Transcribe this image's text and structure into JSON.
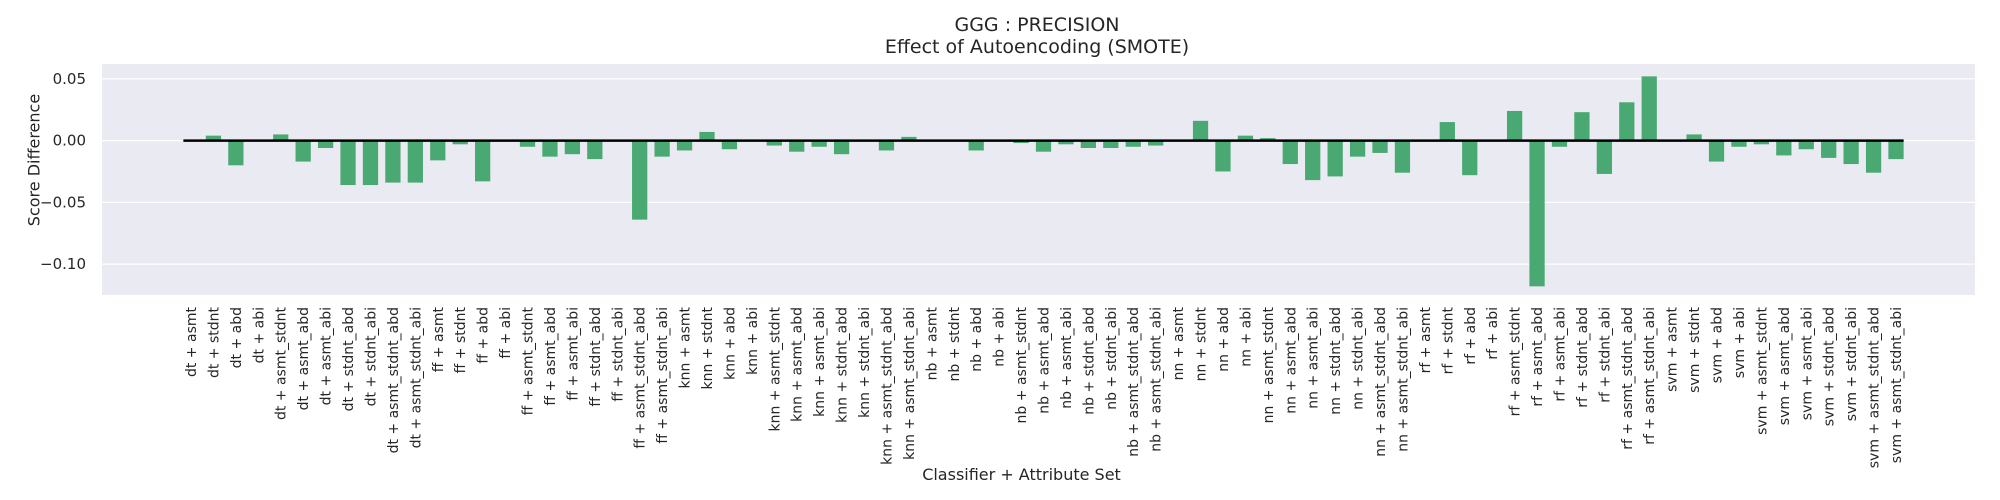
{
  "chart_data": {
    "type": "bar",
    "title": "GGG : PRECISION",
    "subtitle": "Effect of Autoencoding (SMOTE)",
    "xlabel": "Classifier + Attribute Set",
    "ylabel": "Score Difference",
    "ylim": [
      -0.125,
      0.062
    ],
    "yticks": [
      "0.05",
      "0.00",
      "−0.05",
      "−0.10"
    ],
    "ytick_values": [
      0.05,
      0.0,
      -0.05,
      -0.1
    ],
    "grid": true,
    "bar_color": "#4aa872",
    "background_color": "#eaeaf2",
    "categories": [
      "dt + asmt",
      "dt + stdnt",
      "dt + abd",
      "dt + abi",
      "dt + asmt_stdnt",
      "dt + asmt_abd",
      "dt + asmt_abi",
      "dt + stdnt_abd",
      "dt + stdnt_abi",
      "dt + asmt_stdnt_abd",
      "dt + asmt_stdnt_abi",
      "ff + asmt",
      "ff + stdnt",
      "ff + abd",
      "ff + abi",
      "ff + asmt_stdnt",
      "ff + asmt_abd",
      "ff + asmt_abi",
      "ff + stdnt_abd",
      "ff + stdnt_abi",
      "ff + asmt_stdnt_abd",
      "ff + asmt_stdnt_abi",
      "knn + asmt",
      "knn + stdnt",
      "knn + abd",
      "knn + abi",
      "knn + asmt_stdnt",
      "knn + asmt_abd",
      "knn + asmt_abi",
      "knn + stdnt_abd",
      "knn + stdnt_abi",
      "knn + asmt_stdnt_abd",
      "knn + asmt_stdnt_abi",
      "nb + asmt",
      "nb + stdnt",
      "nb + abd",
      "nb + abi",
      "nb + asmt_stdnt",
      "nb + asmt_abd",
      "nb + asmt_abi",
      "nb + stdnt_abd",
      "nb + stdnt_abi",
      "nb + asmt_stdnt_abd",
      "nb + asmt_stdnt_abi",
      "nn + asmt",
      "nn + stdnt",
      "nn + abd",
      "nn + abi",
      "nn + asmt_stdnt",
      "nn + asmt_abd",
      "nn + asmt_abi",
      "nn + stdnt_abd",
      "nn + stdnt_abi",
      "nn + asmt_stdnt_abd",
      "nn + asmt_stdnt_abi",
      "rf + asmt",
      "rf + stdnt",
      "rf + abd",
      "rf + abi",
      "rf + asmt_stdnt",
      "rf + asmt_abd",
      "rf + asmt_abi",
      "rf + stdnt_abd",
      "rf + stdnt_abi",
      "rf + asmt_stdnt_abd",
      "rf + asmt_stdnt_abi",
      "svm + asmt",
      "svm + stdnt",
      "svm + abd",
      "svm + abi",
      "svm + asmt_stdnt",
      "svm + asmt_abd",
      "svm + asmt_abi",
      "svm + stdnt_abd",
      "svm + stdnt_abi",
      "svm + asmt_stdnt_abd",
      "svm + asmt_stdnt_abi"
    ],
    "values": [
      0.0,
      0.004,
      -0.02,
      0.0,
      0.005,
      -0.017,
      -0.006,
      -0.036,
      -0.036,
      -0.034,
      -0.034,
      -0.016,
      -0.003,
      -0.033,
      0.0,
      -0.005,
      -0.013,
      -0.011,
      -0.015,
      0.0,
      -0.064,
      -0.013,
      -0.008,
      0.007,
      -0.007,
      0.0,
      -0.004,
      -0.009,
      -0.005,
      -0.011,
      0.0,
      -0.008,
      0.003,
      0.0,
      0.0,
      -0.008,
      0.0,
      -0.002,
      -0.009,
      -0.003,
      -0.006,
      -0.006,
      -0.005,
      -0.004,
      0.0,
      0.016,
      -0.025,
      0.004,
      0.002,
      -0.019,
      -0.032,
      -0.029,
      -0.013,
      -0.01,
      -0.026,
      0.0,
      0.015,
      -0.028,
      0.0,
      0.024,
      -0.118,
      -0.005,
      0.023,
      -0.027,
      0.031,
      0.052,
      0.0,
      0.005,
      -0.017,
      -0.005,
      -0.003,
      -0.012,
      -0.007,
      -0.014,
      -0.019,
      -0.026,
      -0.015
    ]
  }
}
